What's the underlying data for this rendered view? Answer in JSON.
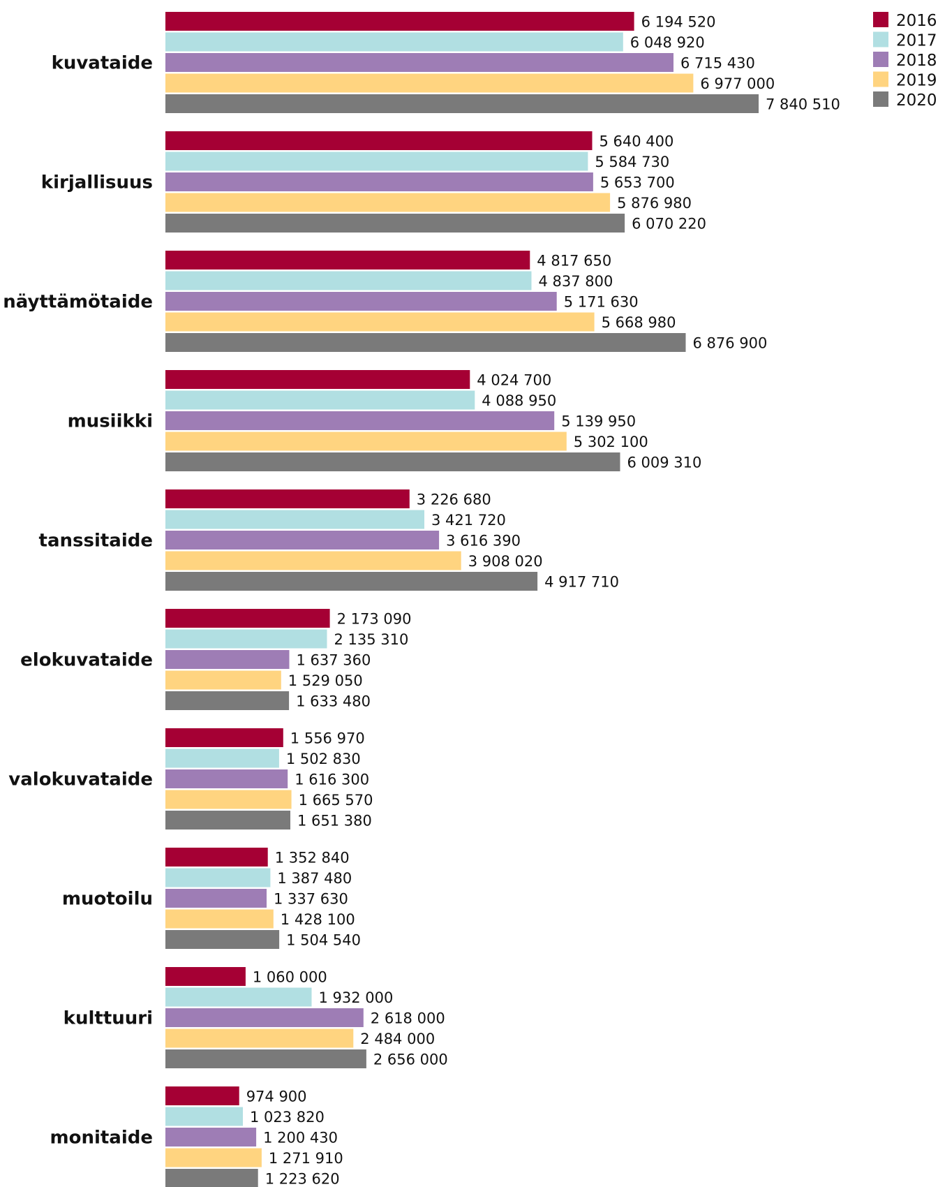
{
  "chart_data": {
    "type": "bar",
    "orientation": "horizontal",
    "title": "",
    "xlabel": "",
    "ylabel": "",
    "xlim": [
      0,
      8000000
    ],
    "grid": false,
    "legend_position": "top-right",
    "categories": [
      "kuvataide",
      "kirjallisuus",
      "näyttämötaide",
      "musiikki",
      "tanssitaide",
      "elokuvataide",
      "valokuvataide",
      "muotoilu",
      "kulttuuri",
      "monitaide"
    ],
    "series": [
      {
        "name": "2016",
        "color": "#a50034",
        "values": [
          6194520,
          5640400,
          4817650,
          4024700,
          3226680,
          2173090,
          1556970,
          1352840,
          1060000,
          974900
        ],
        "labels": [
          "6 194 520",
          "5 640 400",
          "4 817 650",
          "4 024 700",
          "3 226 680",
          "2 173 090",
          "1 556 970",
          "1 352 840",
          "1 060 000",
          "974 900"
        ]
      },
      {
        "name": "2017",
        "color": "#b1dfe2",
        "values": [
          6048920,
          5584730,
          4837800,
          4088950,
          3421720,
          2135310,
          1502830,
          1387480,
          1932000,
          1023820
        ],
        "labels": [
          "6 048 920",
          "5 584 730",
          "4 837 800",
          "4 088 950",
          "3 421 720",
          "2 135 310",
          "1 502 830",
          "1 387 480",
          "1 932 000",
          "1 023 820"
        ]
      },
      {
        "name": "2018",
        "color": "#9e7db5",
        "values": [
          6715430,
          5653700,
          5171630,
          5139950,
          3616390,
          1637360,
          1616300,
          1337630,
          2618000,
          1200430
        ],
        "labels": [
          "6 715 430",
          "5 653 700",
          "5 171 630",
          "5 139 950",
          "3 616 390",
          "1 637 360",
          "1 616 300",
          "1 337 630",
          "2 618 000",
          "1 200 430"
        ]
      },
      {
        "name": "2019",
        "color": "#ffd480",
        "values": [
          6977000,
          5876980,
          5668980,
          5302100,
          3908020,
          1529050,
          1665570,
          1428100,
          2484000,
          1271910
        ],
        "labels": [
          "6 977 000",
          "5 876 980",
          "5 668 980",
          "5 302 100",
          "3 908 020",
          "1 529 050",
          "1 665 570",
          "1 428 100",
          "2 484 000",
          "1 271 910"
        ]
      },
      {
        "name": "2020",
        "color": "#7a7a7a",
        "values": [
          7840510,
          6070220,
          6876900,
          6009310,
          4917710,
          1633480,
          1651380,
          1504540,
          2656000,
          1223620
        ],
        "labels": [
          "7 840 510",
          "6 070 220",
          "6 876 900",
          "6 009 310",
          "4 917 710",
          "1 633 480",
          "1 651 380",
          "1 504 540",
          "2 656 000",
          "1 223 620"
        ]
      }
    ]
  }
}
